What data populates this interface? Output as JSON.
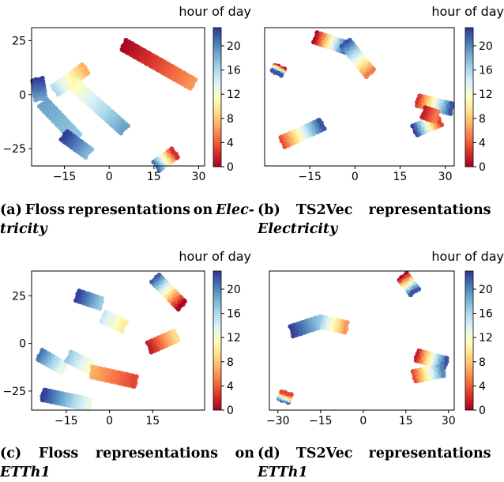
{
  "colorbar": {
    "title": "hour of day",
    "ticks": [
      "0",
      "4",
      "8",
      "12",
      "16",
      "20"
    ],
    "colors": [
      "#a50026",
      "#d73027",
      "#f46d43",
      "#fdae61",
      "#fee090",
      "#ffffbf",
      "#e0f3f8",
      "#abd9e9",
      "#74add1",
      "#4575b4",
      "#313695"
    ]
  },
  "captions": [
    {
      "line1_words": [
        "(a)",
        "Floss",
        "representations",
        "on",
        "Elec-"
      ],
      "line2": "tricity"
    },
    {
      "line1_words": [
        "(b)",
        "TS2Vec",
        "representations",
        "on"
      ],
      "line2": "Electricity"
    },
    {
      "line1_words": [
        "(c)",
        "Floss",
        "representations",
        "on"
      ],
      "line2": "ETTh1"
    },
    {
      "line1_words": [
        "(d)",
        "TS2Vec",
        "representations",
        "on"
      ],
      "line2": "ETTh1"
    }
  ],
  "chart_data": [
    {
      "type": "scatter",
      "title": "",
      "colorbar_label": "hour of day",
      "xticks": [
        "−15",
        "0",
        "15",
        "30"
      ],
      "yticks": [
        "25",
        "0",
        "−25"
      ],
      "xlim": [
        -26,
        32
      ],
      "ylim": [
        -33,
        31
      ],
      "clusters": [
        {
          "x0": -24,
          "y0": 7,
          "x1": -23,
          "y1": -2,
          "h0": 23,
          "h1": 19
        },
        {
          "x0": -22,
          "y0": -4,
          "x1": -11,
          "y1": -20,
          "h0": 19,
          "h1": 17
        },
        {
          "x0": -15,
          "y0": -19,
          "x1": -7,
          "y1": -27,
          "h0": 23,
          "h1": 18
        },
        {
          "x0": -18,
          "y0": 2,
          "x1": -8,
          "y1": 12,
          "h0": 16,
          "h1": 7
        },
        {
          "x0": -12,
          "y0": 5,
          "x1": 5,
          "y1": -16,
          "h0": 11,
          "h1": 19
        },
        {
          "x0": 5,
          "y0": 23,
          "x1": 28,
          "y1": 5,
          "h0": 0,
          "h1": 6
        },
        {
          "x0": 16,
          "y0": -33,
          "x1": 22,
          "y1": -27,
          "h0": 21,
          "h1": 2
        }
      ]
    },
    {
      "type": "scatter",
      "title": "",
      "colorbar_label": "hour of day",
      "xticks": [
        "−15",
        "0",
        "15",
        "30"
      ],
      "yticks": [],
      "xlim": [
        -30,
        33
      ],
      "ylim": [
        -36,
        34
      ],
      "clusters": [
        {
          "x0": -25,
          "y0": 14,
          "x1": -26,
          "y1": 11,
          "h0": 0,
          "h1": 22
        },
        {
          "x0": -13,
          "y0": 29,
          "x1": -3,
          "y1": 24,
          "h0": 0,
          "h1": 22
        },
        {
          "x0": -3,
          "y0": 26,
          "x1": 5,
          "y1": 11,
          "h0": 22,
          "h1": 5
        },
        {
          "x0": -24,
          "y0": -24,
          "x1": -11,
          "y1": -15,
          "h0": 3,
          "h1": 22
        },
        {
          "x0": 21,
          "y0": -3,
          "x1": 32,
          "y1": -7,
          "h0": 2,
          "h1": 22
        },
        {
          "x0": 20,
          "y0": -18,
          "x1": 28,
          "y1": -13,
          "h0": 23,
          "h1": 3
        },
        {
          "x0": 23,
          "y0": -9,
          "x1": 27,
          "y1": -11,
          "h0": 1,
          "h1": 5
        }
      ]
    },
    {
      "type": "scatter",
      "title": "",
      "colorbar_label": "hour of day",
      "xticks": [
        "−15",
        "0",
        "15"
      ],
      "yticks": [
        "25",
        "0",
        "−25"
      ],
      "xlim": [
        -27,
        33
      ],
      "ylim": [
        -35,
        38
      ],
      "clusters": [
        {
          "x0": -24,
          "y0": -6,
          "x1": -16,
          "y1": -13,
          "h0": 21,
          "h1": 13
        },
        {
          "x0": -14,
          "y0": -7,
          "x1": -7,
          "y1": -12,
          "h0": 17,
          "h1": 12
        },
        {
          "x0": -11,
          "y0": 25,
          "x1": -3,
          "y1": 21,
          "h0": 23,
          "h1": 17
        },
        {
          "x0": -2,
          "y0": 14,
          "x1": 5,
          "y1": 9,
          "h0": 15,
          "h1": 10
        },
        {
          "x0": -23,
          "y0": -27,
          "x1": -7,
          "y1": -32,
          "h0": 23,
          "h1": 13
        },
        {
          "x0": -6,
          "y0": -15,
          "x1": 9,
          "y1": -20,
          "h0": 7,
          "h1": 3
        },
        {
          "x0": 14,
          "y0": -2,
          "x1": 23,
          "y1": 4,
          "h0": 1,
          "h1": 9
        },
        {
          "x0": 16,
          "y0": 34,
          "x1": 25,
          "y1": 20,
          "h0": 22,
          "h1": 0
        }
      ]
    },
    {
      "type": "scatter",
      "title": "",
      "colorbar_label": "hour of day",
      "xticks": [
        "−30",
        "−15",
        "0",
        "15",
        "30"
      ],
      "yticks": [],
      "xlim": [
        -33,
        32
      ],
      "ylim": [
        -37,
        37
      ],
      "clusters": [
        {
          "x0": 14,
          "y0": 34,
          "x1": 18,
          "y1": 26,
          "h0": 0,
          "h1": 22
        },
        {
          "x0": -25,
          "y0": 5,
          "x1": -15,
          "y1": 10,
          "h0": 23,
          "h1": 17
        },
        {
          "x0": -15,
          "y0": 10,
          "x1": -6,
          "y1": 7,
          "h0": 17,
          "h1": 6
        },
        {
          "x0": -28,
          "y0": -32,
          "x1": -27,
          "y1": -28,
          "h0": 22,
          "h1": 3
        },
        {
          "x0": 19,
          "y0": -8,
          "x1": 29,
          "y1": -12,
          "h0": 1,
          "h1": 22
        },
        {
          "x0": 18,
          "y0": -19,
          "x1": 28,
          "y1": -16,
          "h0": 3,
          "h1": 20
        }
      ]
    }
  ]
}
